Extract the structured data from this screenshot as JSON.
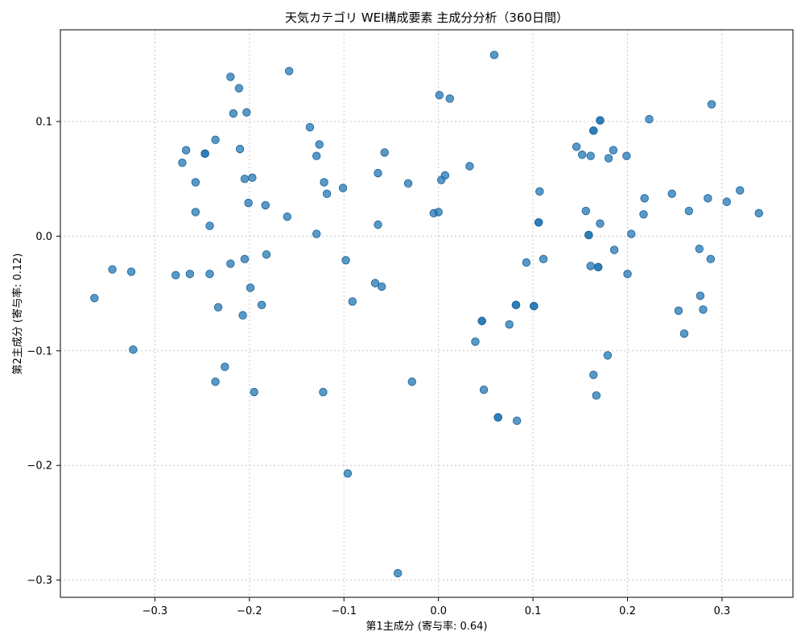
{
  "chart_data": {
    "type": "scatter",
    "title": "天気カテゴリ WEI構成要素 主成分分析（360日間）",
    "xlabel": "第1主成分 (寄与率: 0.64)",
    "ylabel": "第2主成分 (寄与率: 0.12)",
    "xlim": [
      -0.4,
      0.375
    ],
    "ylim": [
      -0.315,
      0.18
    ],
    "xticks": [
      -0.3,
      -0.2,
      -0.1,
      0.0,
      0.1,
      0.2,
      0.3
    ],
    "yticks": [
      -0.3,
      -0.2,
      -0.1,
      0.0,
      0.1
    ],
    "xtick_labels": [
      "−0.3",
      "−0.2",
      "−0.1",
      "0.0",
      "0.1",
      "0.2",
      "0.3"
    ],
    "ytick_labels": [
      "−0.3",
      "−0.2",
      "−0.1",
      "0.0",
      "0.1"
    ],
    "grid": true,
    "color": "#1f77b4",
    "points": [
      [
        -0.364,
        -0.054
      ],
      [
        -0.345,
        -0.029
      ],
      [
        -0.325,
        -0.031
      ],
      [
        -0.323,
        -0.099
      ],
      [
        -0.278,
        -0.034
      ],
      [
        -0.271,
        0.064
      ],
      [
        -0.267,
        0.075
      ],
      [
        -0.263,
        -0.033
      ],
      [
        -0.257,
        0.047
      ],
      [
        -0.257,
        0.021
      ],
      [
        -0.247,
        0.072
      ],
      [
        -0.247,
        0.072
      ],
      [
        -0.242,
        -0.033
      ],
      [
        -0.242,
        0.009
      ],
      [
        -0.236,
        0.084
      ],
      [
        -0.236,
        -0.127
      ],
      [
        -0.233,
        -0.062
      ],
      [
        -0.226,
        -0.114
      ],
      [
        -0.22,
        0.139
      ],
      [
        -0.22,
        -0.024
      ],
      [
        -0.217,
        0.107
      ],
      [
        -0.211,
        0.129
      ],
      [
        -0.21,
        0.076
      ],
      [
        -0.207,
        -0.069
      ],
      [
        -0.205,
        0.05
      ],
      [
        -0.205,
        -0.02
      ],
      [
        -0.203,
        0.108
      ],
      [
        -0.201,
        0.029
      ],
      [
        -0.199,
        -0.045
      ],
      [
        -0.197,
        0.051
      ],
      [
        -0.195,
        -0.136
      ],
      [
        -0.187,
        -0.06
      ],
      [
        -0.183,
        0.027
      ],
      [
        -0.182,
        -0.016
      ],
      [
        -0.16,
        0.017
      ],
      [
        -0.158,
        0.144
      ],
      [
        -0.136,
        0.095
      ],
      [
        -0.129,
        0.002
      ],
      [
        -0.129,
        0.07
      ],
      [
        -0.126,
        0.08
      ],
      [
        -0.122,
        -0.136
      ],
      [
        -0.121,
        0.047
      ],
      [
        -0.118,
        0.037
      ],
      [
        -0.101,
        0.042
      ],
      [
        -0.098,
        -0.021
      ],
      [
        -0.096,
        -0.207
      ],
      [
        -0.091,
        -0.057
      ],
      [
        -0.067,
        -0.041
      ],
      [
        -0.064,
        0.055
      ],
      [
        -0.064,
        0.01
      ],
      [
        -0.06,
        -0.044
      ],
      [
        -0.057,
        0.073
      ],
      [
        -0.043,
        -0.294
      ],
      [
        -0.032,
        0.046
      ],
      [
        -0.028,
        -0.127
      ],
      [
        -0.005,
        0.02
      ],
      [
        0.0,
        0.021
      ],
      [
        0.001,
        0.123
      ],
      [
        0.003,
        0.049
      ],
      [
        0.007,
        0.053
      ],
      [
        0.012,
        0.12
      ],
      [
        0.033,
        0.061
      ],
      [
        0.039,
        -0.092
      ],
      [
        0.046,
        -0.074
      ],
      [
        0.046,
        -0.074
      ],
      [
        0.048,
        -0.134
      ],
      [
        0.059,
        0.158
      ],
      [
        0.063,
        -0.158
      ],
      [
        0.063,
        -0.158
      ],
      [
        0.075,
        -0.077
      ],
      [
        0.082,
        -0.06
      ],
      [
        0.082,
        -0.06
      ],
      [
        0.083,
        -0.161
      ],
      [
        0.093,
        -0.023
      ],
      [
        0.101,
        -0.061
      ],
      [
        0.101,
        -0.061
      ],
      [
        0.106,
        0.012
      ],
      [
        0.106,
        0.012
      ],
      [
        0.107,
        0.039
      ],
      [
        0.111,
        -0.02
      ],
      [
        0.146,
        0.078
      ],
      [
        0.152,
        0.071
      ],
      [
        0.156,
        0.022
      ],
      [
        0.159,
        0.001
      ],
      [
        0.159,
        0.001
      ],
      [
        0.161,
        -0.026
      ],
      [
        0.161,
        0.07
      ],
      [
        0.164,
        0.092
      ],
      [
        0.164,
        0.092
      ],
      [
        0.164,
        -0.121
      ],
      [
        0.167,
        -0.139
      ],
      [
        0.169,
        -0.027
      ],
      [
        0.169,
        -0.027
      ],
      [
        0.171,
        0.101
      ],
      [
        0.171,
        0.101
      ],
      [
        0.171,
        0.011
      ],
      [
        0.179,
        -0.104
      ],
      [
        0.18,
        0.068
      ],
      [
        0.185,
        0.075
      ],
      [
        0.186,
        -0.012
      ],
      [
        0.199,
        0.07
      ],
      [
        0.2,
        -0.033
      ],
      [
        0.204,
        0.002
      ],
      [
        0.217,
        0.019
      ],
      [
        0.218,
        0.033
      ],
      [
        0.223,
        0.102
      ],
      [
        0.247,
        0.037
      ],
      [
        0.254,
        -0.065
      ],
      [
        0.26,
        -0.085
      ],
      [
        0.265,
        0.022
      ],
      [
        0.276,
        -0.011
      ],
      [
        0.277,
        -0.052
      ],
      [
        0.28,
        -0.064
      ],
      [
        0.285,
        0.033
      ],
      [
        0.288,
        -0.02
      ],
      [
        0.289,
        0.115
      ],
      [
        0.305,
        0.03
      ],
      [
        0.319,
        0.04
      ],
      [
        0.339,
        0.02
      ]
    ]
  }
}
